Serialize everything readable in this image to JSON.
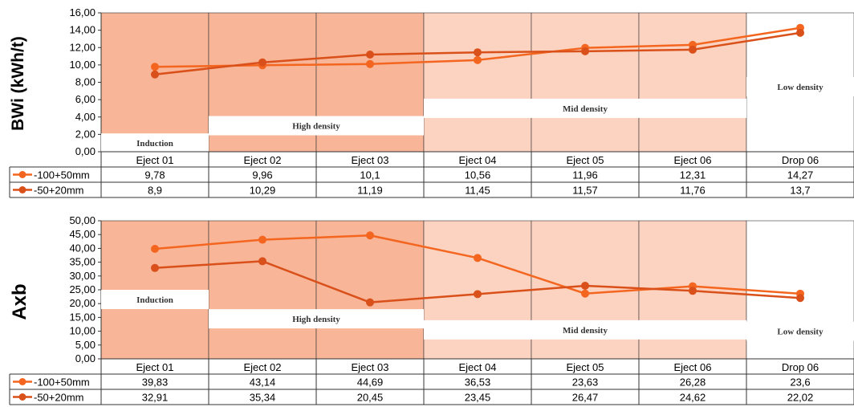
{
  "colors": {
    "zone_induction": "#f8b597",
    "zone_high": "#f8b597",
    "zone_mid": "#fcd3c0",
    "zone_low": "#ffffff",
    "series_a": "#f4661f",
    "series_b": "#d9501a"
  },
  "chart_data": [
    {
      "type": "line",
      "ylabel": "BWi (kWh/t)",
      "ylim": [
        0,
        16
      ],
      "ytick_step": 2,
      "ytick_labels": [
        "0,00",
        "2,00",
        "4,00",
        "6,00",
        "8,00",
        "10,00",
        "12,00",
        "14,00",
        "16,00"
      ],
      "categories": [
        "Eject 01",
        "Eject 02",
        "Eject 03",
        "Eject 04",
        "Eject 05",
        "Eject 06",
        "Drop 06"
      ],
      "series": [
        {
          "name": "-100+50mm",
          "values": [
            9.78,
            9.96,
            10.1,
            10.56,
            11.96,
            12.31,
            14.27
          ],
          "labels": [
            "9,78",
            "9,96",
            "10,1",
            "10,56",
            "11,96",
            "12,31",
            "14,27"
          ]
        },
        {
          "name": "-50+20mm",
          "values": [
            8.9,
            10.29,
            11.19,
            11.45,
            11.57,
            11.76,
            13.7
          ],
          "labels": [
            "8,9",
            "10,29",
            "11,19",
            "11,45",
            "11,57",
            "11,76",
            "13,7"
          ]
        }
      ],
      "zones": [
        {
          "label": "Induction",
          "from": 0,
          "to": 1,
          "shade": "zone_induction",
          "label_y": 1
        },
        {
          "label": "High density",
          "from": 1,
          "to": 3,
          "shade": "zone_high",
          "label_y": 3
        },
        {
          "label": "Mid density",
          "from": 3,
          "to": 6,
          "shade": "zone_mid",
          "label_y": 5
        },
        {
          "label": "Low density",
          "from": 6,
          "to": 7,
          "shade": "zone_low",
          "label_y": 7.5
        }
      ]
    },
    {
      "type": "line",
      "ylabel": "Axb",
      "ylim": [
        0,
        50
      ],
      "ytick_step": 5,
      "ytick_labels": [
        "0,00",
        "5,00",
        "10,00",
        "15,00",
        "20,00",
        "25,00",
        "30,00",
        "35,00",
        "40,00",
        "45,00",
        "50,00"
      ],
      "categories": [
        "Eject 01",
        "Eject 02",
        "Eject 03",
        "Eject 04",
        "Eject 05",
        "Eject 06",
        "Drop 06"
      ],
      "series": [
        {
          "name": "-100+50mm",
          "values": [
            39.83,
            43.14,
            44.69,
            36.53,
            23.63,
            26.28,
            23.6
          ],
          "labels": [
            "39,83",
            "43,14",
            "44,69",
            "36,53",
            "23,63",
            "26,28",
            "23,6"
          ]
        },
        {
          "name": "-50+20mm",
          "values": [
            32.91,
            35.34,
            20.45,
            23.45,
            26.47,
            24.62,
            22.02
          ],
          "labels": [
            "32,91",
            "35,34",
            "20,45",
            "23,45",
            "26,47",
            "24,62",
            "22,02"
          ]
        }
      ],
      "zones": [
        {
          "label": "Induction",
          "from": 0,
          "to": 1,
          "shade": "zone_induction",
          "label_y": 21.5
        },
        {
          "label": "High density",
          "from": 1,
          "to": 3,
          "shade": "zone_high",
          "label_y": 14.5
        },
        {
          "label": "Mid density",
          "from": 3,
          "to": 6,
          "shade": "zone_mid",
          "label_y": 10.5
        },
        {
          "label": "Low density",
          "from": 6,
          "to": 7,
          "shade": "zone_low",
          "label_y": 10
        }
      ]
    }
  ]
}
